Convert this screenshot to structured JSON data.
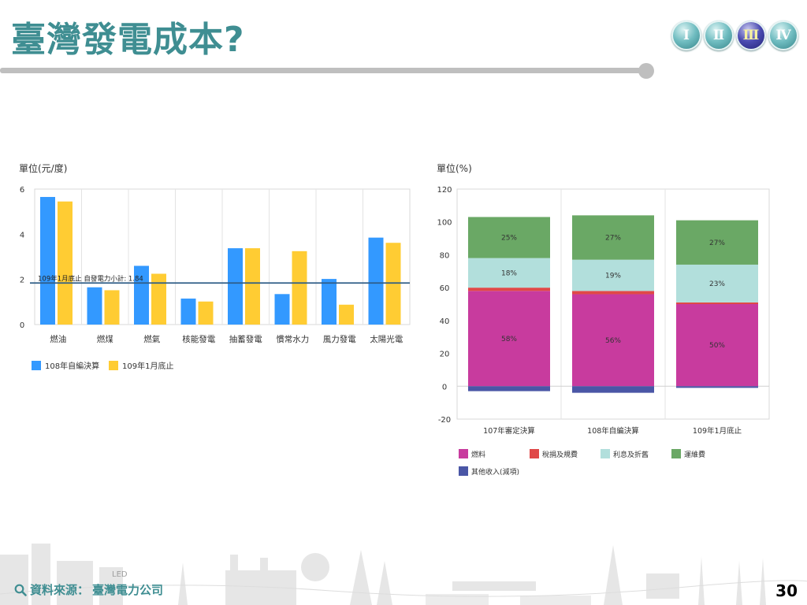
{
  "header": {
    "title": "臺灣發電成本?",
    "nav": [
      {
        "label": "Ⅰ",
        "active": false
      },
      {
        "label": "Ⅱ",
        "active": false
      },
      {
        "label": "Ⅲ",
        "active": true
      },
      {
        "label": "Ⅳ",
        "active": false
      }
    ]
  },
  "footer": {
    "source_label": "資料來源：",
    "source_value": "臺灣電力公司",
    "page_number": "30",
    "led_label": "LED"
  },
  "colors": {
    "accent": "#3f8e92",
    "bar_blue": "#3399ff",
    "bar_yellow": "#ffcc33",
    "fuel": "#c83b9e",
    "tax": "#e04848",
    "interest": "#b2dfdc",
    "maintenance": "#6aa865",
    "other": "#4a56a6"
  },
  "chart_data": [
    {
      "type": "bar",
      "unit_label": "單位(元/度)",
      "categories": [
        "燃油",
        "燃煤",
        "燃氣",
        "核能發電",
        "抽蓄發電",
        "慣常水力",
        "風力發電",
        "太陽光電"
      ],
      "series": [
        {
          "name": "108年自編決算",
          "values": [
            5.65,
            1.65,
            2.6,
            1.15,
            3.38,
            1.35,
            2.02,
            3.85
          ]
        },
        {
          "name": "109年1月底止",
          "values": [
            5.45,
            1.52,
            2.25,
            1.02,
            3.38,
            3.25,
            0.88,
            3.62
          ]
        }
      ],
      "ylim": [
        0,
        6
      ],
      "yticks": [
        0,
        2,
        4,
        6
      ],
      "reference_line": {
        "value": 1.84,
        "label": "109年1月底止 自發電力小計: 1.84"
      },
      "legend_position": "bottom-left",
      "grid": "vertical"
    },
    {
      "type": "bar",
      "stacked": true,
      "unit_label": "單位(%)",
      "categories": [
        "107年審定決算",
        "108年自編決算",
        "109年1月底止"
      ],
      "series": [
        {
          "name": "燃料",
          "values": [
            58,
            56,
            50
          ],
          "labels": [
            "58%",
            "56%",
            "50%"
          ]
        },
        {
          "name": "稅捐及規費",
          "values": [
            2,
            2,
            1
          ],
          "labels": [
            "",
            "",
            ""
          ]
        },
        {
          "name": "利息及折舊",
          "values": [
            18,
            19,
            23
          ],
          "labels": [
            "18%",
            "19%",
            "23%"
          ]
        },
        {
          "name": "運維費",
          "values": [
            25,
            27,
            27
          ],
          "labels": [
            "25%",
            "27%",
            "27%"
          ]
        },
        {
          "name": "其他收入(減項)",
          "values": [
            -3,
            -4,
            -1
          ],
          "labels": [
            "",
            "",
            ""
          ]
        }
      ],
      "ylim": [
        -20,
        120
      ],
      "yticks": [
        -20,
        0,
        20,
        40,
        60,
        80,
        100,
        120
      ],
      "legend_position": "bottom",
      "grid": "vertical"
    }
  ]
}
